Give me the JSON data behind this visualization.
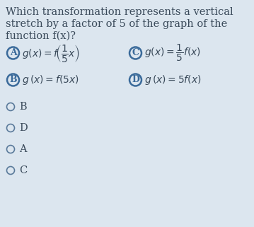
{
  "background_color": "#dce6ef",
  "question_lines": [
    "Which transformation represents a vertical",
    "stretch by a factor of 5 of the graph of the",
    "function f(x)?"
  ],
  "choices": [
    {
      "label": "A",
      "text_latex": "$g(x) = f\\left(\\frac{1}{5}x\\right)$",
      "circle_filled": false,
      "row": 0,
      "col": 0
    },
    {
      "label": "B",
      "text_latex": "$g (x) = f(5x)$",
      "circle_filled": false,
      "row": 1,
      "col": 0
    },
    {
      "label": "C",
      "text_latex": "$g(x) = \\frac{1}{5}f(x)$",
      "circle_filled": false,
      "row": 0,
      "col": 1
    },
    {
      "label": "D",
      "text_latex": "$g (x) = 5f(x)$",
      "circle_filled": false,
      "row": 1,
      "col": 1
    }
  ],
  "radio_options": [
    "B",
    "D",
    "A",
    "C"
  ],
  "text_color": "#3a4a5a",
  "circle_color": "#3a6a9a",
  "radio_circle_color": "#5a7a9a",
  "question_fontsize": 10.5,
  "choice_fontsize": 10,
  "radio_fontsize": 10.5
}
